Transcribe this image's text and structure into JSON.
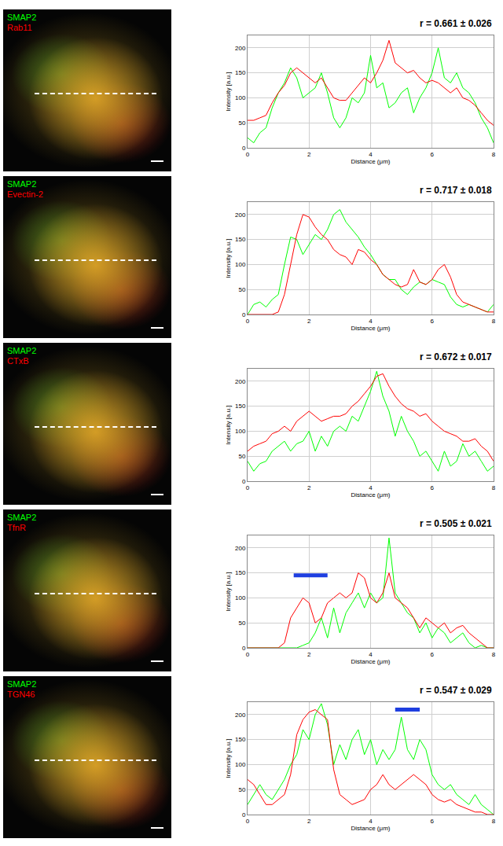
{
  "chart_data": [
    {
      "type": "line",
      "title": "r = 0.661 ± 0.026",
      "x_label": "Distance (μm)",
      "y_label": "Intensity [a.u.]",
      "x": [
        0,
        0.2,
        0.4,
        0.6,
        0.8,
        1,
        1.2,
        1.4,
        1.6,
        1.8,
        2,
        2.2,
        2.4,
        2.6,
        2.8,
        3,
        3.2,
        3.4,
        3.6,
        3.8,
        4,
        4.2,
        4.4,
        4.6,
        4.8,
        5,
        5.2,
        5.4,
        5.6,
        5.8,
        6,
        6.2,
        6.4,
        6.6,
        6.8,
        7,
        7.2,
        7.4,
        7.6,
        7.8,
        8
      ],
      "series": [
        {
          "name": "SMAP2",
          "color": "#00ff00",
          "values": [
            20,
            10,
            30,
            40,
            80,
            110,
            130,
            160,
            140,
            100,
            110,
            120,
            150,
            110,
            60,
            40,
            60,
            100,
            90,
            110,
            185,
            120,
            130,
            80,
            90,
            110,
            120,
            70,
            100,
            120,
            150,
            200,
            140,
            130,
            150,
            120,
            110,
            90,
            60,
            40,
            10
          ]
        },
        {
          "name": "Rab11",
          "color": "#ff0000",
          "values": [
            55,
            55,
            60,
            65,
            90,
            110,
            125,
            150,
            160,
            150,
            140,
            130,
            140,
            120,
            100,
            95,
            95,
            110,
            125,
            140,
            130,
            150,
            175,
            215,
            170,
            160,
            150,
            155,
            140,
            130,
            135,
            130,
            120,
            110,
            120,
            100,
            95,
            85,
            70,
            55,
            45
          ]
        }
      ],
      "xlim": [
        0,
        8
      ],
      "xticks": [
        0,
        2,
        4,
        6,
        8
      ],
      "ylim": [
        0,
        225
      ],
      "yticks": [
        0,
        50,
        100,
        150,
        200
      ],
      "grid": true
    },
    {
      "type": "line",
      "title": "r = 0.717 ± 0.018",
      "x_label": "Distance (μm)",
      "y_label": "Intensity [a.u.]",
      "x": [
        0,
        0.2,
        0.4,
        0.6,
        0.8,
        1,
        1.2,
        1.4,
        1.6,
        1.8,
        2,
        2.2,
        2.4,
        2.6,
        2.8,
        3,
        3.2,
        3.4,
        3.6,
        3.8,
        4,
        4.2,
        4.4,
        4.6,
        4.8,
        5,
        5.2,
        5.4,
        5.6,
        5.8,
        6,
        6.2,
        6.4,
        6.6,
        6.8,
        7,
        7.2,
        7.4,
        7.6,
        7.8,
        8
      ],
      "series": [
        {
          "name": "SMAP2",
          "color": "#00ff00",
          "values": [
            0,
            20,
            25,
            15,
            30,
            40,
            100,
            155,
            150,
            120,
            140,
            160,
            150,
            170,
            200,
            210,
            185,
            170,
            155,
            135,
            120,
            100,
            80,
            70,
            70,
            50,
            40,
            55,
            65,
            60,
            70,
            65,
            60,
            35,
            20,
            15,
            20,
            15,
            10,
            5,
            20
          ]
        },
        {
          "name": "Evectin-2",
          "color": "#ff0000",
          "values": [
            0,
            0,
            0,
            0,
            0,
            5,
            40,
            100,
            160,
            200,
            195,
            175,
            160,
            150,
            130,
            120,
            115,
            100,
            130,
            125,
            110,
            100,
            80,
            70,
            60,
            55,
            60,
            90,
            65,
            60,
            70,
            90,
            100,
            75,
            40,
            25,
            20,
            15,
            10,
            5,
            5
          ]
        }
      ],
      "xlim": [
        0,
        8
      ],
      "xticks": [
        0,
        2,
        4,
        6,
        8
      ],
      "ylim": [
        0,
        225
      ],
      "yticks": [
        0,
        50,
        100,
        150,
        200
      ],
      "grid": true
    },
    {
      "type": "line",
      "title": "r = 0.672 ± 0.017",
      "x_label": "Distance (μm)",
      "y_label": "Intensity [a.u.]",
      "x": [
        0,
        0.2,
        0.4,
        0.6,
        0.8,
        1,
        1.2,
        1.4,
        1.6,
        1.8,
        2,
        2.2,
        2.4,
        2.6,
        2.8,
        3,
        3.2,
        3.4,
        3.6,
        3.8,
        4,
        4.2,
        4.4,
        4.6,
        4.8,
        5,
        5.2,
        5.4,
        5.6,
        5.8,
        6,
        6.2,
        6.4,
        6.6,
        6.8,
        7,
        7.2,
        7.4,
        7.6,
        7.8,
        8
      ],
      "series": [
        {
          "name": "SMAP2",
          "color": "#00ff00",
          "values": [
            40,
            20,
            35,
            40,
            60,
            70,
            80,
            60,
            75,
            80,
            100,
            60,
            90,
            70,
            100,
            110,
            100,
            130,
            120,
            150,
            180,
            220,
            170,
            140,
            90,
            130,
            100,
            80,
            50,
            60,
            40,
            20,
            60,
            30,
            40,
            75,
            50,
            60,
            40,
            20,
            30
          ]
        },
        {
          "name": "CTxB",
          "color": "#ff0000",
          "values": [
            60,
            70,
            75,
            80,
            95,
            100,
            110,
            100,
            120,
            130,
            140,
            130,
            120,
            125,
            130,
            130,
            135,
            150,
            160,
            175,
            190,
            210,
            215,
            190,
            170,
            155,
            145,
            140,
            130,
            135,
            120,
            110,
            100,
            95,
            90,
            80,
            80,
            85,
            70,
            60,
            40
          ]
        }
      ],
      "xlim": [
        0,
        8
      ],
      "xticks": [
        0,
        2,
        4,
        6,
        8
      ],
      "ylim": [
        0,
        225
      ],
      "yticks": [
        0,
        50,
        100,
        150,
        200
      ],
      "grid": true
    },
    {
      "type": "line",
      "title": "r = 0.505 ± 0.021",
      "x_label": "Distance (μm)",
      "y_label": "Intensity [a.u.]",
      "x": [
        0,
        0.2,
        0.4,
        0.6,
        0.8,
        1,
        1.2,
        1.4,
        1.6,
        1.8,
        2,
        2.2,
        2.4,
        2.6,
        2.8,
        3,
        3.2,
        3.4,
        3.6,
        3.8,
        4,
        4.2,
        4.4,
        4.6,
        4.8,
        5,
        5.2,
        5.4,
        5.6,
        5.8,
        6,
        6.2,
        6.4,
        6.6,
        6.8,
        7,
        7.2,
        7.4,
        7.6,
        7.8,
        8
      ],
      "series": [
        {
          "name": "SMAP2",
          "color": "#00ff00",
          "values": [
            0,
            0,
            0,
            0,
            0,
            0,
            0,
            0,
            0,
            5,
            10,
            30,
            60,
            20,
            80,
            30,
            70,
            90,
            110,
            80,
            110,
            90,
            100,
            220,
            110,
            90,
            70,
            60,
            30,
            50,
            20,
            40,
            30,
            10,
            20,
            30,
            10,
            0,
            5,
            0,
            0
          ]
        },
        {
          "name": "TfnR",
          "color": "#ff0000",
          "values": [
            0,
            0,
            0,
            0,
            0,
            0,
            10,
            60,
            80,
            100,
            90,
            50,
            60,
            90,
            100,
            110,
            100,
            110,
            150,
            140,
            100,
            90,
            110,
            150,
            100,
            90,
            80,
            60,
            40,
            60,
            50,
            40,
            50,
            30,
            40,
            45,
            30,
            20,
            10,
            0,
            0
          ]
        }
      ],
      "annotations": [
        {
          "x": [
            1.5,
            2.6
          ],
          "y": 145,
          "color": "#1f3fe0"
        }
      ],
      "xlim": [
        0,
        8
      ],
      "xticks": [
        0,
        2,
        4,
        6,
        8
      ],
      "ylim": [
        0,
        225
      ],
      "yticks": [
        0,
        50,
        100,
        150,
        200
      ],
      "grid": true
    },
    {
      "type": "line",
      "title": "r = 0.547 ± 0.029",
      "x_label": "Distance (μm)",
      "y_label": "Intensity [a.u.]",
      "x": [
        0,
        0.2,
        0.4,
        0.6,
        0.8,
        1,
        1.2,
        1.4,
        1.6,
        1.8,
        2,
        2.2,
        2.4,
        2.6,
        2.8,
        3,
        3.2,
        3.4,
        3.6,
        3.8,
        4,
        4.2,
        4.4,
        4.6,
        4.8,
        5,
        5.2,
        5.4,
        5.6,
        5.8,
        6,
        6.2,
        6.4,
        6.6,
        6.8,
        7,
        7.2,
        7.4,
        7.6,
        7.8,
        8
      ],
      "series": [
        {
          "name": "SMAP2",
          "color": "#00ff00",
          "values": [
            20,
            40,
            60,
            40,
            30,
            50,
            70,
            100,
            120,
            170,
            150,
            200,
            222,
            180,
            100,
            140,
            110,
            150,
            170,
            120,
            150,
            100,
            130,
            110,
            130,
            195,
            130,
            110,
            150,
            130,
            80,
            60,
            50,
            60,
            40,
            30,
            20,
            40,
            20,
            10,
            0
          ]
        },
        {
          "name": "TGN46",
          "color": "#ff0000",
          "values": [
            70,
            60,
            40,
            20,
            20,
            30,
            40,
            80,
            160,
            190,
            205,
            210,
            200,
            190,
            90,
            40,
            30,
            20,
            25,
            30,
            50,
            60,
            80,
            60,
            50,
            60,
            70,
            80,
            70,
            60,
            40,
            30,
            25,
            30,
            20,
            15,
            10,
            5,
            5,
            0,
            0
          ]
        }
      ],
      "annotations": [
        {
          "x": [
            4.8,
            5.6
          ],
          "y": 210,
          "color": "#1f3fe0"
        }
      ],
      "xlim": [
        0,
        8
      ],
      "xticks": [
        0,
        2,
        4,
        6,
        8
      ],
      "ylim": [
        0,
        225
      ],
      "yticks": [
        0,
        50,
        100,
        150,
        200
      ],
      "grid": true
    }
  ]
}
